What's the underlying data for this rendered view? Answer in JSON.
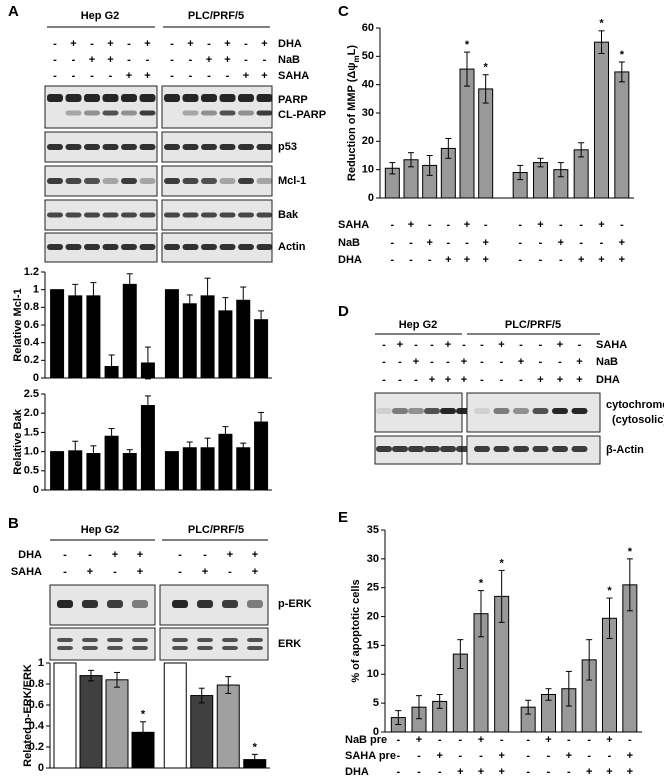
{
  "A": {
    "label": "A",
    "groups": [
      "Hep G2",
      "PLC/PRF/5"
    ],
    "treatments": [
      {
        "label": "DHA",
        "signs": [
          "-",
          "+",
          "-",
          "+",
          "-",
          "+",
          "-",
          "+",
          "-",
          "+",
          "-",
          "+"
        ]
      },
      {
        "label": "NaB",
        "signs": [
          "-",
          "-",
          "+",
          "+",
          "-",
          "-",
          "-",
          "-",
          "+",
          "+",
          "-",
          "-"
        ]
      },
      {
        "label": "SAHA",
        "signs": [
          "-",
          "-",
          "-",
          "-",
          "+",
          "+",
          "-",
          "-",
          "-",
          "-",
          "+",
          "+"
        ]
      }
    ],
    "blots": [
      "PARP",
      "CL-PARP",
      "p53",
      "Mcl-1",
      "Bak",
      "Actin"
    ]
  },
  "B": {
    "label": "B",
    "groups": [
      "Hep G2",
      "PLC/PRF/5"
    ],
    "treatments": [
      {
        "label": "DHA",
        "signs": [
          "-",
          "-",
          "+",
          "+",
          "-",
          "-",
          "+",
          "+"
        ]
      },
      {
        "label": "SAHA",
        "signs": [
          "-",
          "+",
          "-",
          "+",
          "-",
          "+",
          "-",
          "+"
        ]
      }
    ],
    "blots": [
      "p-ERK",
      "ERK"
    ]
  },
  "C": {
    "label": "C",
    "treatments": [
      {
        "label": "SAHA",
        "signs": [
          "-",
          "+",
          "-",
          "-",
          "+",
          "-",
          "-",
          "+",
          "-",
          "-",
          "+",
          "-"
        ]
      },
      {
        "label": "NaB",
        "signs": [
          "-",
          "-",
          "+",
          "-",
          "-",
          "+",
          "-",
          "-",
          "+",
          "-",
          "-",
          "+"
        ]
      },
      {
        "label": "DHA",
        "signs": [
          "-",
          "-",
          "-",
          "+",
          "+",
          "+",
          "-",
          "-",
          "-",
          "+",
          "+",
          "+"
        ]
      }
    ]
  },
  "D": {
    "label": "D",
    "groups": [
      "Hep G2",
      "PLC/PRF/5"
    ],
    "treatments": [
      {
        "label": "SAHA",
        "signs": [
          "-",
          "+",
          "-",
          "-",
          "+",
          "-",
          "-",
          "+",
          "-",
          "-",
          "+",
          "-"
        ]
      },
      {
        "label": "NaB",
        "signs": [
          "-",
          "-",
          "+",
          "-",
          "-",
          "+",
          "-",
          "-",
          "+",
          "-",
          "-",
          "+"
        ]
      },
      {
        "label": "DHA",
        "signs": [
          "-",
          "-",
          "-",
          "+",
          "+",
          "+",
          "-",
          "-",
          "-",
          "+",
          "+",
          "+"
        ]
      }
    ],
    "blots": [
      "cytochrome c",
      "(cytosolic)",
      "β-Actin"
    ]
  },
  "E": {
    "label": "E",
    "treatments": [
      {
        "label": "NaB pre",
        "signs": [
          "-",
          "+",
          "-",
          "-",
          "+",
          "-",
          "-",
          "+",
          "-",
          "-",
          "+",
          "-"
        ]
      },
      {
        "label": "SAHA pre",
        "signs": [
          "-",
          "-",
          "+",
          "-",
          "-",
          "+",
          "-",
          "-",
          "+",
          "-",
          "-",
          "+"
        ]
      },
      {
        "label": "DHA",
        "signs": [
          "-",
          "-",
          "-",
          "+",
          "+",
          "+",
          "-",
          "-",
          "-",
          "+",
          "+",
          "+"
        ]
      }
    ]
  },
  "chart_data": [
    {
      "type": "bar",
      "ylabel": "Relative Mcl-1",
      "ylim": [
        0,
        1.2
      ],
      "yticks": [
        0,
        0.2,
        0.4,
        0.6,
        0.8,
        1,
        1.2
      ],
      "series": [
        {
          "color": "#000000",
          "values": [
            1,
            0.93,
            0.93,
            0.13,
            1.06,
            0.17
          ],
          "errors": [
            null,
            0.13,
            0.15,
            0.13,
            0.12,
            0.18
          ]
        },
        {
          "color": "#000000",
          "values": [
            1,
            0.84,
            0.93,
            0.76,
            0.88,
            0.66
          ],
          "errors": [
            null,
            0.1,
            0.2,
            0.15,
            0.15,
            0.1
          ]
        }
      ]
    },
    {
      "type": "bar",
      "ylabel": "Relative Bak",
      "ylim": [
        0,
        2.5
      ],
      "yticks": [
        0,
        0.5,
        {
          "value": 1,
          "label": "1.0"
        },
        1.5,
        {
          "value": 2,
          "label": "2.0"
        },
        2.5
      ],
      "series": [
        {
          "color": "#000000",
          "values": [
            1,
            1.02,
            0.95,
            1.4,
            0.95,
            2.2
          ],
          "errors": [
            null,
            0.25,
            0.2,
            0.2,
            0.1,
            0.25
          ]
        },
        {
          "color": "#000000",
          "values": [
            1,
            1.1,
            1.1,
            1.45,
            1.1,
            1.77
          ],
          "errors": [
            null,
            0.15,
            0.25,
            0.2,
            0.12,
            0.25
          ]
        }
      ]
    },
    {
      "type": "bar",
      "ylabel": "Related p-ERK/ERK",
      "ylim": [
        0,
        1
      ],
      "yticks": [
        0,
        0.2,
        0.4,
        0.6,
        0.8,
        1
      ],
      "series": [
        {
          "colors": [
            "#ffffff",
            "#404040",
            "#a0a0a0",
            "#000000"
          ],
          "values": [
            1,
            0.88,
            0.84,
            0.34
          ],
          "errors": [
            null,
            0.05,
            0.07,
            0.1
          ],
          "markers": [
            null,
            null,
            null,
            "*"
          ]
        },
        {
          "colors": [
            "#ffffff",
            "#404040",
            "#a0a0a0",
            "#000000"
          ],
          "values": [
            1,
            0.69,
            0.79,
            0.08
          ],
          "errors": [
            null,
            0.07,
            0.08,
            0.05
          ],
          "markers": [
            null,
            null,
            null,
            "*"
          ]
        }
      ]
    },
    {
      "type": "bar",
      "ylabel": "Reduction of MMP (Δψ",
      "ylabel_sub": "m",
      "ylabel_end": "L)",
      "ylim": [
        0,
        60
      ],
      "yticks": [
        0,
        10,
        20,
        30,
        40,
        50,
        60
      ],
      "series": [
        {
          "color": "#999999",
          "values": [
            10.5,
            13.5,
            11.5,
            17.5,
            45.5,
            38.5
          ],
          "errors": [
            2,
            2.5,
            3.5,
            3.5,
            6,
            5
          ],
          "markers": [
            null,
            null,
            null,
            null,
            "*",
            "*"
          ]
        },
        {
          "color": "#999999",
          "values": [
            9,
            12.5,
            10,
            17,
            55,
            44.5
          ],
          "errors": [
            2.5,
            1.5,
            2.5,
            2.5,
            4,
            3.5
          ],
          "markers": [
            null,
            null,
            null,
            null,
            "*",
            "*"
          ]
        }
      ]
    },
    {
      "type": "bar",
      "ylabel": "% of apoptotic cells",
      "ylim": [
        0,
        35
      ],
      "yticks": [
        0,
        5,
        10,
        15,
        20,
        25,
        30,
        35
      ],
      "series": [
        {
          "color": "#999999",
          "values": [
            2.5,
            4.3,
            5.3,
            13.5,
            20.5,
            23.5
          ],
          "errors": [
            1.2,
            2,
            1.2,
            2.5,
            4,
            4.5
          ],
          "markers": [
            null,
            null,
            null,
            null,
            "*",
            "*"
          ]
        },
        {
          "color": "#999999",
          "values": [
            4.3,
            6.5,
            7.5,
            12.5,
            19.7,
            25.5
          ],
          "errors": [
            1.2,
            1,
            3,
            3.5,
            3.5,
            4.5
          ],
          "markers": [
            null,
            null,
            null,
            null,
            "*",
            "*"
          ]
        }
      ]
    }
  ]
}
